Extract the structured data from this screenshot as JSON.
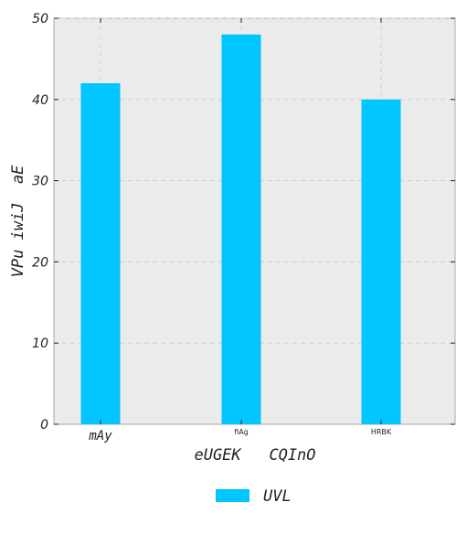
{
  "chart_data": {
    "type": "bar",
    "categories": [
      "mAy",
      "fiAg",
      "HRBK"
    ],
    "series": [
      {
        "name": "UVL",
        "values": [
          42,
          48,
          40
        ],
        "color": "#00c5ff"
      }
    ],
    "xlabel": "eUGEK   CQInO",
    "ylabel": "VPu iwiJ  aE",
    "ylim": [
      0,
      50
    ],
    "yticks": [
      0,
      10,
      20,
      30,
      40,
      50
    ],
    "grid": true,
    "legend_position": "bottom-center",
    "background_color": "#ebebeb",
    "grid_color": "#cfcfcf",
    "axis_color": "#aaaaaa"
  }
}
